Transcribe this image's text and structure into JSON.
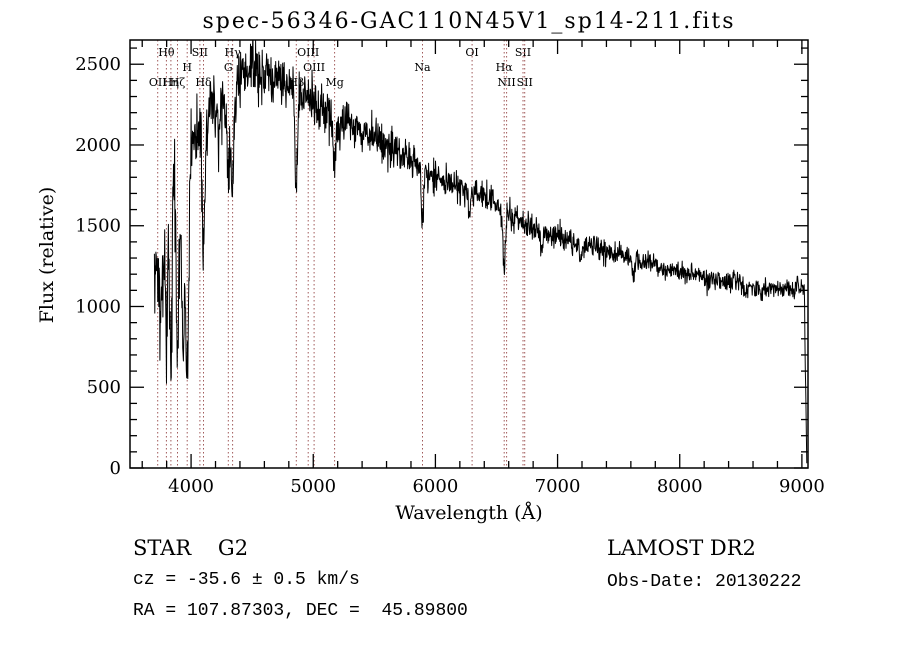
{
  "footer": {
    "class_label": "STAR    G2",
    "survey": "LAMOST DR2",
    "cz": "cz = -35.6 ± 0.5 km/s",
    "obs_date": "Obs-Date: 20130222",
    "coords": "RA = 107.87303, DEC =  45.89800"
  },
  "chart_data": {
    "type": "line",
    "title": "spec-56346-GAC110N45V1_sp14-211.fits",
    "xlabel": "Wavelength (Å)",
    "ylabel": "Flux (relative)",
    "xlim": [
      3500,
      9050
    ],
    "ylim": [
      0,
      2650
    ],
    "xticks": [
      4000,
      5000,
      6000,
      7000,
      8000,
      9000
    ],
    "yticks": [
      0,
      500,
      1000,
      1500,
      2000,
      2500
    ],
    "x_minor_step": 200,
    "y_minor_step": 100,
    "grid": false,
    "legend": null,
    "line_color": "#000000",
    "marker_line_color": "#a15a5a",
    "marker_label_color": "#1a1a1a",
    "spectral_lines": [
      {
        "wavelength": 3727,
        "label": "OII",
        "row": 3
      },
      {
        "wavelength": 3798,
        "label": "Hθ",
        "row": 1
      },
      {
        "wavelength": 3835,
        "label": "Hη",
        "row": 3
      },
      {
        "wavelength": 3889,
        "label": "Hζ",
        "row": 3
      },
      {
        "wavelength": 3968,
        "label": "H",
        "row": 2
      },
      {
        "wavelength": 4072,
        "label": "SII",
        "row": 1
      },
      {
        "wavelength": 4102,
        "label": "Hδ",
        "row": 3
      },
      {
        "wavelength": 4305,
        "label": "G",
        "row": 2
      },
      {
        "wavelength": 4340,
        "label": "Hγ",
        "row": 1
      },
      {
        "wavelength": 4861,
        "label": "Hβ",
        "row": 3
      },
      {
        "wavelength": 4959,
        "label": "OIII",
        "row": 1
      },
      {
        "wavelength": 5007,
        "label": "OIII",
        "row": 2
      },
      {
        "wavelength": 5175,
        "label": "Mg",
        "row": 3
      },
      {
        "wavelength": 5894,
        "label": "Na",
        "row": 2
      },
      {
        "wavelength": 6300,
        "label": "OI",
        "row": 1
      },
      {
        "wavelength": 6563,
        "label": "Hα",
        "row": 2
      },
      {
        "wavelength": 6583,
        "label": "NII",
        "row": 3
      },
      {
        "wavelength": 6717,
        "label": "SII",
        "row": 1
      },
      {
        "wavelength": 6731,
        "label": "SII",
        "row": 3
      }
    ],
    "spectrum": {
      "start": 3700,
      "end": 9040,
      "step": 3,
      "seed": 42,
      "continuum": [
        [
          3700,
          1800
        ],
        [
          3760,
          1780
        ],
        [
          3820,
          1900
        ],
        [
          3880,
          1880
        ],
        [
          3940,
          1750
        ],
        [
          4000,
          2020
        ],
        [
          4080,
          2120
        ],
        [
          4160,
          2230
        ],
        [
          4260,
          2300
        ],
        [
          4360,
          2360
        ],
        [
          4440,
          2440
        ],
        [
          4520,
          2470
        ],
        [
          4600,
          2450
        ],
        [
          4700,
          2420
        ],
        [
          4800,
          2380
        ],
        [
          4900,
          2320
        ],
        [
          5000,
          2270
        ],
        [
          5100,
          2220
        ],
        [
          5200,
          2160
        ],
        [
          5300,
          2120
        ],
        [
          5400,
          2090
        ],
        [
          5500,
          2050
        ],
        [
          5600,
          2000
        ],
        [
          5700,
          1950
        ],
        [
          5800,
          1900
        ],
        [
          5900,
          1840
        ],
        [
          6000,
          1800
        ],
        [
          6100,
          1770
        ],
        [
          6200,
          1730
        ],
        [
          6300,
          1700
        ],
        [
          6400,
          1670
        ],
        [
          6500,
          1640
        ],
        [
          6600,
          1570
        ],
        [
          6700,
          1520
        ],
        [
          6800,
          1480
        ],
        [
          6950,
          1440
        ],
        [
          7100,
          1410
        ],
        [
          7250,
          1370
        ],
        [
          7400,
          1340
        ],
        [
          7550,
          1310
        ],
        [
          7700,
          1280
        ],
        [
          7850,
          1240
        ],
        [
          8000,
          1220
        ],
        [
          8150,
          1200
        ],
        [
          8300,
          1170
        ],
        [
          8450,
          1150
        ],
        [
          8600,
          1130
        ],
        [
          8750,
          1120
        ],
        [
          8900,
          1110
        ],
        [
          9000,
          1130
        ],
        [
          9020,
          1090
        ],
        [
          9040,
          60
        ]
      ],
      "absorptions": [
        {
          "center": 3703,
          "depth": 700,
          "width": 6
        },
        {
          "center": 3727,
          "depth": 520,
          "width": 10
        },
        {
          "center": 3750,
          "depth": 850,
          "width": 9
        },
        {
          "center": 3770,
          "depth": 600,
          "width": 8
        },
        {
          "center": 3798,
          "depth": 1050,
          "width": 10
        },
        {
          "center": 3835,
          "depth": 1380,
          "width": 10
        },
        {
          "center": 3889,
          "depth": 1080,
          "width": 11
        },
        {
          "center": 3933,
          "depth": 1150,
          "width": 12
        },
        {
          "center": 3969,
          "depth": 1280,
          "width": 12
        },
        {
          "center": 4102,
          "depth": 780,
          "width": 13
        },
        {
          "center": 4227,
          "depth": 300,
          "width": 8
        },
        {
          "center": 4305,
          "depth": 480,
          "width": 14
        },
        {
          "center": 4340,
          "depth": 620,
          "width": 11
        },
        {
          "center": 4861,
          "depth": 560,
          "width": 11
        },
        {
          "center": 5175,
          "depth": 280,
          "width": 14
        },
        {
          "center": 5894,
          "depth": 330,
          "width": 9
        },
        {
          "center": 6277,
          "depth": 120,
          "width": 8
        },
        {
          "center": 6563,
          "depth": 380,
          "width": 9
        },
        {
          "center": 6870,
          "depth": 130,
          "width": 9
        },
        {
          "center": 7190,
          "depth": 70,
          "width": 14
        },
        {
          "center": 7620,
          "depth": 110,
          "width": 11
        },
        {
          "center": 8230,
          "depth": 60,
          "width": 12
        },
        {
          "center": 8542,
          "depth": 90,
          "width": 10
        },
        {
          "center": 8662,
          "depth": 70,
          "width": 9
        }
      ],
      "noise": [
        [
          3700,
          160
        ],
        [
          3900,
          150
        ],
        [
          4100,
          110
        ],
        [
          4400,
          95
        ],
        [
          4700,
          85
        ],
        [
          5000,
          70
        ],
        [
          5300,
          65
        ],
        [
          5600,
          60
        ],
        [
          5900,
          55
        ],
        [
          6200,
          50
        ],
        [
          6500,
          48
        ],
        [
          6800,
          42
        ],
        [
          7100,
          38
        ],
        [
          7400,
          35
        ],
        [
          7700,
          33
        ],
        [
          8000,
          31
        ],
        [
          8300,
          30
        ],
        [
          8600,
          29
        ],
        [
          9000,
          27
        ]
      ]
    }
  }
}
